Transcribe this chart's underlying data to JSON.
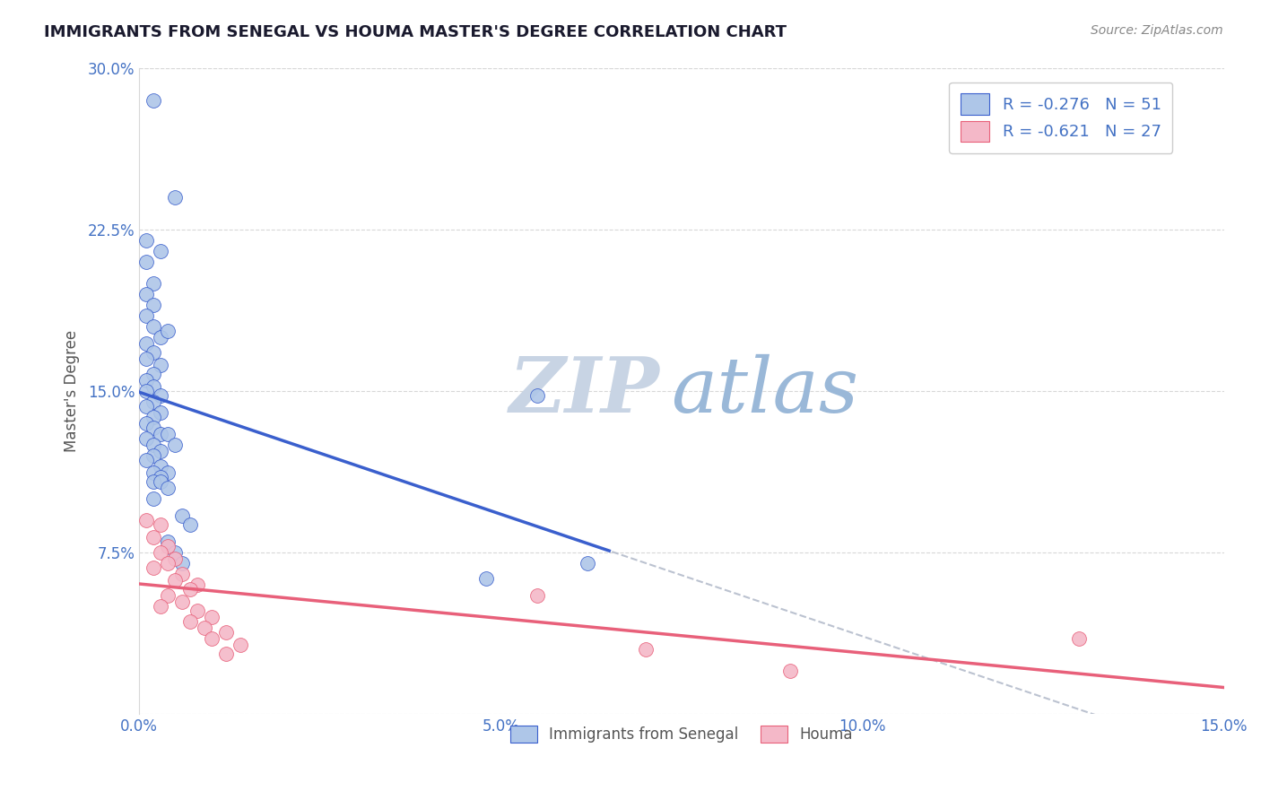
{
  "title": "IMMIGRANTS FROM SENEGAL VS HOUMA MASTER'S DEGREE CORRELATION CHART",
  "source": "Source: ZipAtlas.com",
  "ylabel": "Master's Degree",
  "xlim": [
    0.0,
    0.15
  ],
  "ylim": [
    0.0,
    0.3
  ],
  "xticks": [
    0.0,
    0.05,
    0.1,
    0.15
  ],
  "yticks": [
    0.0,
    0.075,
    0.15,
    0.225,
    0.3
  ],
  "blue_label": "Immigrants from Senegal",
  "pink_label": "Houma",
  "blue_R": -0.276,
  "blue_N": 51,
  "pink_R": -0.621,
  "pink_N": 27,
  "blue_color": "#aec6e8",
  "pink_color": "#f4b8c8",
  "blue_line_color": "#3a5fcd",
  "pink_line_color": "#e8607a",
  "gray_line_color": "#b0b8c8",
  "tick_color": "#4472c4",
  "legend_text_color": "#4472c4",
  "title_color": "#1a1a2e",
  "ylabel_color": "#555555",
  "source_color": "#888888",
  "blue_x": [
    0.002,
    0.005,
    0.001,
    0.003,
    0.001,
    0.002,
    0.001,
    0.002,
    0.001,
    0.002,
    0.003,
    0.001,
    0.002,
    0.001,
    0.003,
    0.002,
    0.004,
    0.001,
    0.002,
    0.001,
    0.003,
    0.002,
    0.001,
    0.003,
    0.002,
    0.001,
    0.002,
    0.003,
    0.004,
    0.001,
    0.002,
    0.003,
    0.002,
    0.001,
    0.003,
    0.002,
    0.004,
    0.003,
    0.002,
    0.005,
    0.003,
    0.004,
    0.002,
    0.006,
    0.007,
    0.004,
    0.005,
    0.006,
    0.055,
    0.062,
    0.048
  ],
  "blue_y": [
    0.285,
    0.24,
    0.22,
    0.215,
    0.21,
    0.2,
    0.195,
    0.19,
    0.185,
    0.18,
    0.175,
    0.172,
    0.168,
    0.165,
    0.162,
    0.158,
    0.178,
    0.155,
    0.152,
    0.15,
    0.148,
    0.145,
    0.143,
    0.14,
    0.138,
    0.135,
    0.133,
    0.13,
    0.13,
    0.128,
    0.125,
    0.122,
    0.12,
    0.118,
    0.115,
    0.112,
    0.112,
    0.11,
    0.108,
    0.125,
    0.108,
    0.105,
    0.1,
    0.092,
    0.088,
    0.08,
    0.075,
    0.07,
    0.148,
    0.07,
    0.063
  ],
  "pink_x": [
    0.001,
    0.003,
    0.002,
    0.004,
    0.003,
    0.005,
    0.004,
    0.002,
    0.006,
    0.005,
    0.008,
    0.007,
    0.004,
    0.006,
    0.003,
    0.008,
    0.01,
    0.007,
    0.009,
    0.012,
    0.01,
    0.014,
    0.012,
    0.055,
    0.07,
    0.09,
    0.13
  ],
  "pink_y": [
    0.09,
    0.088,
    0.082,
    0.078,
    0.075,
    0.072,
    0.07,
    0.068,
    0.065,
    0.062,
    0.06,
    0.058,
    0.055,
    0.052,
    0.05,
    0.048,
    0.045,
    0.043,
    0.04,
    0.038,
    0.035,
    0.032,
    0.028,
    0.055,
    0.03,
    0.02,
    0.035
  ],
  "watermark_zip": "ZIP",
  "watermark_atlas": "atlas",
  "watermark_zip_color": "#c8d4e4",
  "watermark_atlas_color": "#9ab8d8",
  "background_color": "#ffffff",
  "grid_color": "#d8d8d8"
}
